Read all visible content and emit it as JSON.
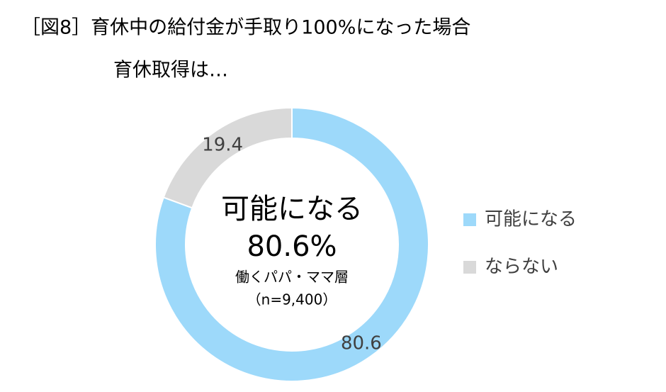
{
  "chart_data": {
    "type": "donut",
    "title": "［図8］育休中の給付金が手取り100%になった場合",
    "subtitle": "育休取得は…",
    "categories": [
      "可能になる",
      "ならない"
    ],
    "values": [
      80.6,
      19.4
    ],
    "colors": [
      "#9dd9fa",
      "#d9d9d9"
    ],
    "annotations": [
      "可能になる",
      "80.6%",
      "働くパパ・ママ層",
      "（n=9,400）"
    ],
    "legend": "right"
  }
}
